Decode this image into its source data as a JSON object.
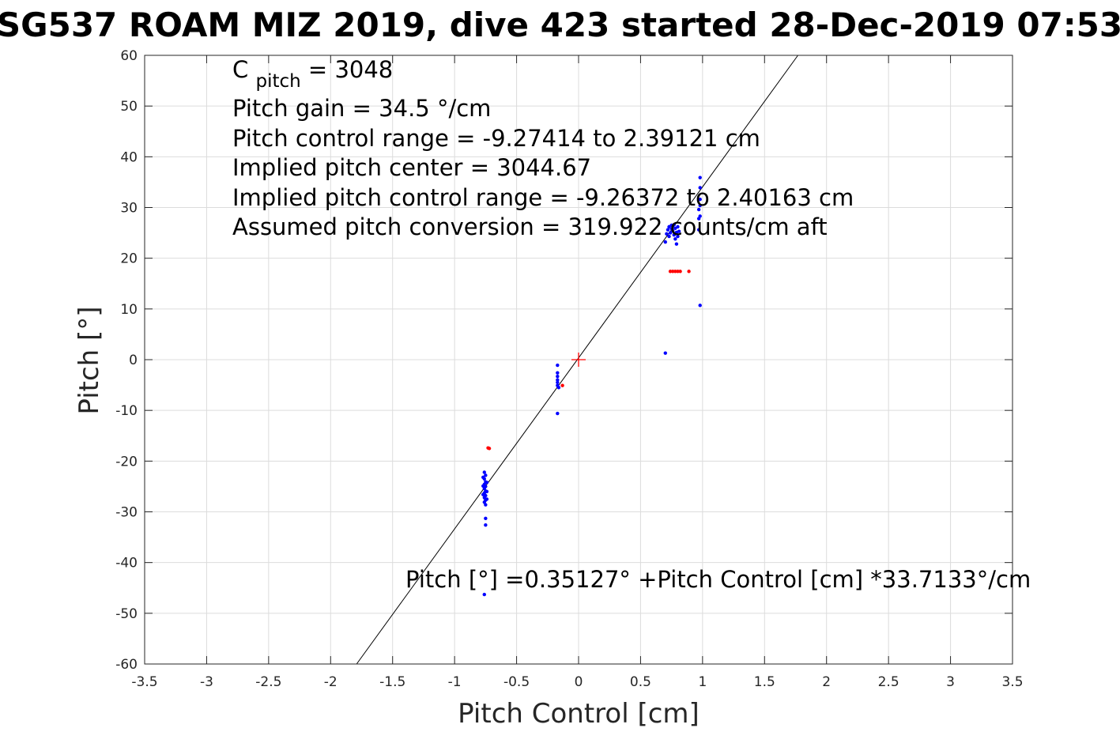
{
  "title": "SG537 ROAM MIZ 2019, dive 423 started 28-Dec-2019 07:53",
  "chart_data": {
    "type": "scatter",
    "xlabel": "Pitch Control [cm]",
    "ylabel": "Pitch [°]",
    "xlim": [
      -3.5,
      3.5
    ],
    "ylim": [
      -60,
      60
    ],
    "xticks": [
      -3.5,
      -3,
      -2.5,
      -2,
      -1.5,
      -1,
      -0.5,
      0,
      0.5,
      1,
      1.5,
      2,
      2.5,
      3,
      3.5
    ],
    "yticks": [
      -60,
      -50,
      -40,
      -30,
      -20,
      -10,
      0,
      10,
      20,
      30,
      40,
      50,
      60
    ],
    "grid": true,
    "annotations": {
      "cpitch_main": "C",
      "cpitch_sub": "pitch",
      "cpitch_value": " = 3048",
      "gain": "Pitch gain = 34.5 °/cm",
      "control_range": "Pitch control range = -9.27414 to 2.39121 cm",
      "implied_center": "Implied pitch center = 3044.67",
      "implied_range": "Implied pitch control range = -9.26372 to 2.40163 cm",
      "conversion": "Assumed pitch conversion = 319.922 counts/cm aft",
      "fit_equation": "Pitch [°] =0.35127° +Pitch Control [cm] *33.7133°/cm"
    },
    "fit_line": {
      "intercept": 0.35127,
      "slope": 33.7133,
      "color": "#000000"
    },
    "center_marker": {
      "x": 0,
      "y": 0,
      "color": "#ff0000",
      "marker": "plus"
    },
    "series": [
      {
        "color": "#0000ff",
        "points": [
          [
            -0.76,
            -22.2
          ],
          [
            -0.75,
            -22.8
          ],
          [
            -0.76,
            -23.5
          ],
          [
            -0.75,
            -24.1
          ],
          [
            -0.76,
            -24.6
          ],
          [
            -0.75,
            -25.0
          ],
          [
            -0.76,
            -25.4
          ],
          [
            -0.75,
            -25.9
          ],
          [
            -0.76,
            -26.3
          ],
          [
            -0.75,
            -26.8
          ],
          [
            -0.76,
            -27.2
          ],
          [
            -0.75,
            -27.7
          ],
          [
            -0.76,
            -28.1
          ],
          [
            -0.75,
            -28.6
          ],
          [
            -0.77,
            -23.2
          ],
          [
            -0.77,
            -24.9
          ],
          [
            -0.77,
            -26.6
          ],
          [
            -0.74,
            -24.2
          ],
          [
            -0.74,
            -26.0
          ],
          [
            -0.74,
            -27.5
          ],
          [
            -0.75,
            -31.3
          ],
          [
            -0.75,
            -32.6
          ],
          [
            -0.76,
            -46.3
          ],
          [
            -0.17,
            -1.1
          ],
          [
            -0.17,
            -2.6
          ],
          [
            -0.17,
            -3.3
          ],
          [
            -0.17,
            -4.0
          ],
          [
            -0.17,
            -4.5
          ],
          [
            -0.17,
            -5.1
          ],
          [
            -0.16,
            -5.5
          ],
          [
            -0.17,
            -10.6
          ],
          [
            0.7,
            1.3
          ],
          [
            0.7,
            23.2
          ],
          [
            0.71,
            24.8
          ],
          [
            0.72,
            25.6
          ],
          [
            0.73,
            26.2
          ],
          [
            0.74,
            25.0
          ],
          [
            0.75,
            26.5
          ],
          [
            0.76,
            25.4
          ],
          [
            0.77,
            24.6
          ],
          [
            0.78,
            25.9
          ],
          [
            0.78,
            23.8
          ],
          [
            0.79,
            22.8
          ],
          [
            0.79,
            25.1
          ],
          [
            0.8,
            26.2
          ],
          [
            0.8,
            24.3
          ],
          [
            0.81,
            25.3
          ],
          [
            0.73,
            24.3
          ],
          [
            0.75,
            25.8
          ],
          [
            0.77,
            26.6
          ],
          [
            0.97,
            25.6
          ],
          [
            0.97,
            27.8
          ],
          [
            0.97,
            29.6
          ],
          [
            0.98,
            28.3
          ],
          [
            0.98,
            30.4
          ],
          [
            0.98,
            31.6
          ],
          [
            0.98,
            33.9
          ],
          [
            0.98,
            35.9
          ],
          [
            0.98,
            10.7
          ]
        ]
      },
      {
        "color": "#ff0000",
        "points": [
          [
            -0.72,
            -17.5
          ],
          [
            -0.73,
            -17.4
          ],
          [
            -0.13,
            -5.1
          ],
          [
            0.74,
            17.4
          ],
          [
            0.76,
            17.4
          ],
          [
            0.78,
            17.4
          ],
          [
            0.8,
            17.4
          ],
          [
            0.82,
            17.4
          ],
          [
            0.89,
            17.4
          ]
        ]
      }
    ]
  }
}
